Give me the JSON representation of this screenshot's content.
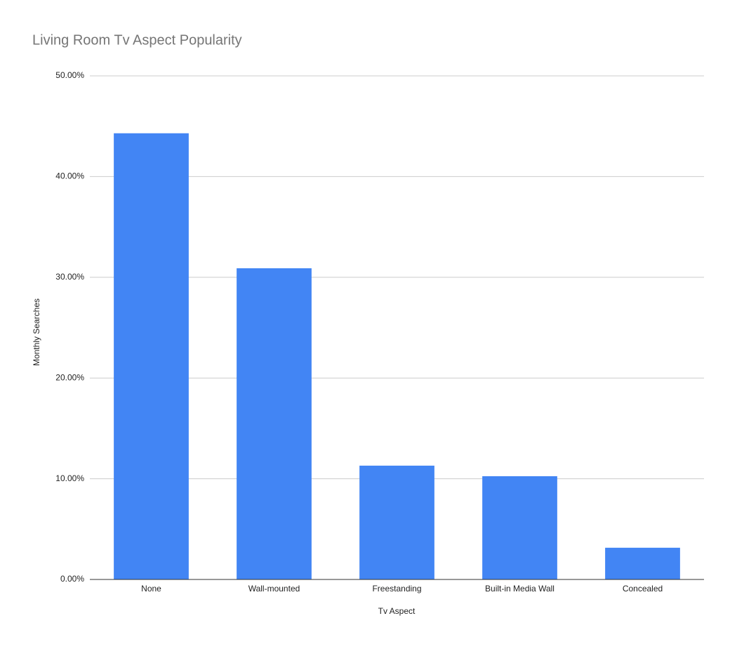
{
  "chart_data": {
    "type": "bar",
    "title": "Living Room Tv Aspect Popularity",
    "x_label": "Tv Aspect",
    "y_label": "Monthly Searches",
    "categories": [
      "None",
      "Wall-mounted",
      "Freestanding",
      "Built-in Media Wall",
      "Concealed"
    ],
    "values": [
      44.3,
      30.9,
      11.3,
      10.25,
      3.15
    ],
    "color": "#4285f4",
    "ylim": [
      0,
      50
    ],
    "yticks": [
      {
        "value": 0,
        "label": "0.00%"
      },
      {
        "value": 10,
        "label": "10.00%"
      },
      {
        "value": 20,
        "label": "20.00%"
      },
      {
        "value": 30,
        "label": "30.00%"
      },
      {
        "value": 40,
        "label": "40.00%"
      },
      {
        "value": 50,
        "label": "50.00%"
      }
    ],
    "grid": true
  }
}
